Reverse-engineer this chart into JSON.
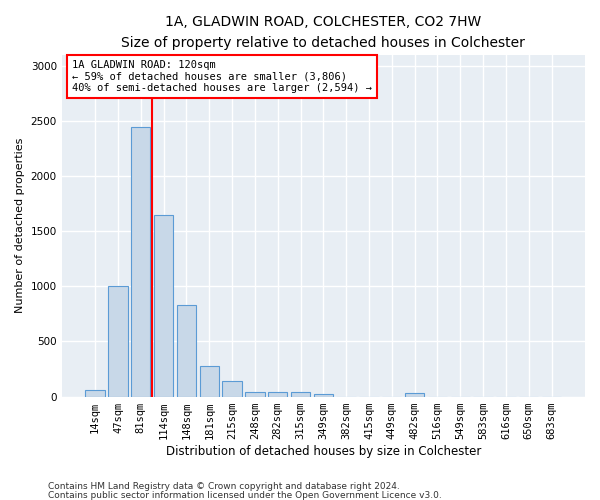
{
  "title1": "1A, GLADWIN ROAD, COLCHESTER, CO2 7HW",
  "title2": "Size of property relative to detached houses in Colchester",
  "xlabel": "Distribution of detached houses by size in Colchester",
  "ylabel": "Number of detached properties",
  "categories": [
    "14sqm",
    "47sqm",
    "81sqm",
    "114sqm",
    "148sqm",
    "181sqm",
    "215sqm",
    "248sqm",
    "282sqm",
    "315sqm",
    "349sqm",
    "382sqm",
    "415sqm",
    "449sqm",
    "482sqm",
    "516sqm",
    "549sqm",
    "583sqm",
    "616sqm",
    "650sqm",
    "683sqm"
  ],
  "values": [
    60,
    1000,
    2450,
    1650,
    830,
    280,
    140,
    45,
    40,
    45,
    25,
    0,
    0,
    0,
    30,
    0,
    0,
    0,
    0,
    0,
    0
  ],
  "bar_color": "#c8d8e8",
  "bar_edge_color": "#5b9bd5",
  "property_line_index": 3,
  "annotation_line1": "1A GLADWIN ROAD: 120sqm",
  "annotation_line2": "← 59% of detached houses are smaller (3,806)",
  "annotation_line3": "40% of semi-detached houses are larger (2,594) →",
  "ylim": [
    0,
    3100
  ],
  "footer1": "Contains HM Land Registry data © Crown copyright and database right 2024.",
  "footer2": "Contains public sector information licensed under the Open Government Licence v3.0.",
  "background_color": "#e8eef4",
  "plot_background": "#ffffff",
  "grid_color": "#ffffff",
  "title1_fontsize": 10,
  "title2_fontsize": 9,
  "ylabel_fontsize": 8,
  "xlabel_fontsize": 8.5,
  "tick_fontsize": 7.5,
  "annotation_fontsize": 7.5,
  "footer_fontsize": 6.5
}
